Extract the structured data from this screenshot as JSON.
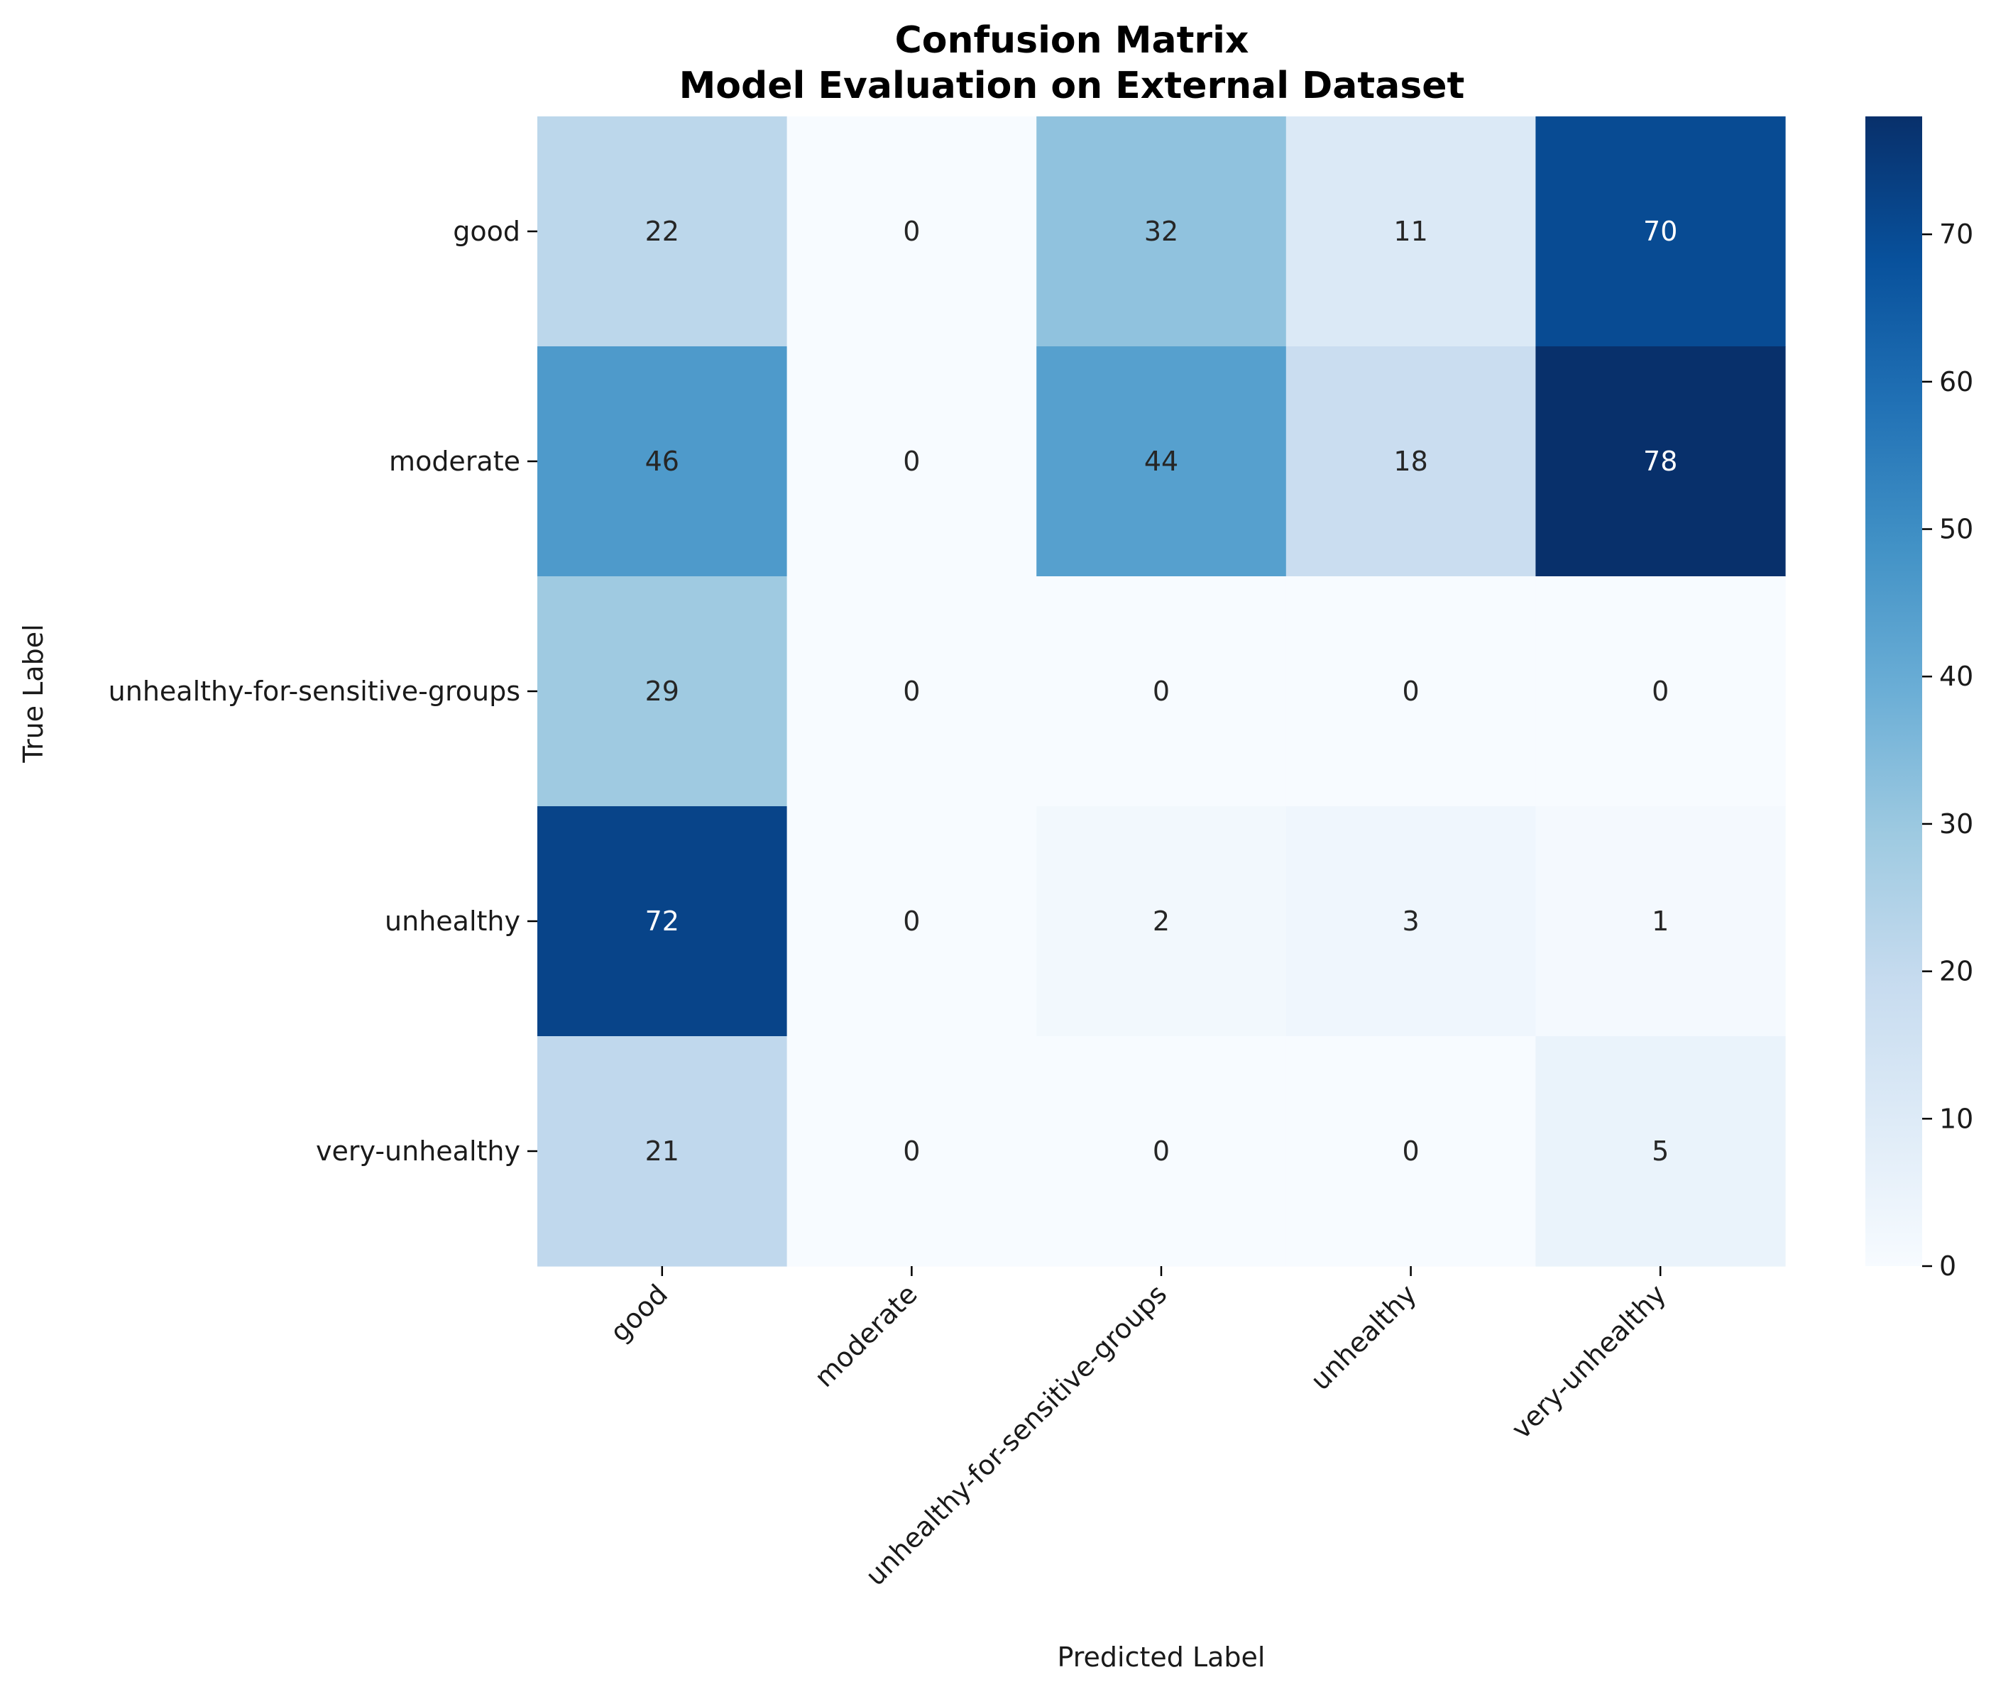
{
  "chart_data": {
    "type": "heatmap",
    "title_line1": "Confusion Matrix",
    "title_line2": "Model Evaluation on External Dataset",
    "xlabel": "Predicted Label",
    "ylabel": "True Label",
    "x_categories": [
      "good",
      "moderate",
      "unhealthy-for-sensitive-groups",
      "unhealthy",
      "very-unhealthy"
    ],
    "y_categories": [
      "good",
      "moderate",
      "unhealthy-for-sensitive-groups",
      "unhealthy",
      "very-unhealthy"
    ],
    "values": [
      [
        22,
        0,
        32,
        11,
        70
      ],
      [
        46,
        0,
        44,
        18,
        78
      ],
      [
        29,
        0,
        0,
        0,
        0
      ],
      [
        72,
        0,
        2,
        3,
        1
      ],
      [
        21,
        0,
        0,
        0,
        5
      ]
    ],
    "colormap": "Blues",
    "colorbar": {
      "min": 0,
      "max": 78,
      "ticks": [
        0,
        10,
        20,
        30,
        40,
        50,
        60,
        70
      ]
    },
    "colors": {
      "low": "#f7fbff",
      "high": "#08306b"
    }
  }
}
